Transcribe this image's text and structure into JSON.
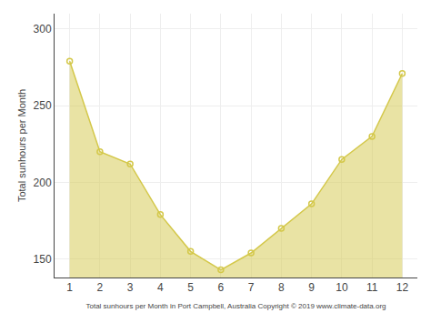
{
  "chart_data": {
    "type": "area",
    "x": [
      1,
      2,
      3,
      4,
      5,
      6,
      7,
      8,
      9,
      10,
      11,
      12
    ],
    "values": [
      279,
      220,
      212,
      179,
      155,
      143,
      154,
      170,
      186,
      215,
      230,
      271
    ],
    "color": "#D4C84A",
    "marker": "circle-open",
    "xlabel": "Total sunhours per Month in Port Campbell, Australia Copyright © 2019 www.climate-data.org",
    "ylabel": "Total sunhours per Month",
    "xlim": [
      0.5,
      12.5
    ],
    "ylim": [
      138,
      310
    ],
    "xticks": [
      1,
      2,
      3,
      4,
      5,
      6,
      7,
      8,
      9,
      10,
      11,
      12
    ],
    "yticks": [
      150,
      200,
      250,
      300
    ],
    "grid": true
  }
}
